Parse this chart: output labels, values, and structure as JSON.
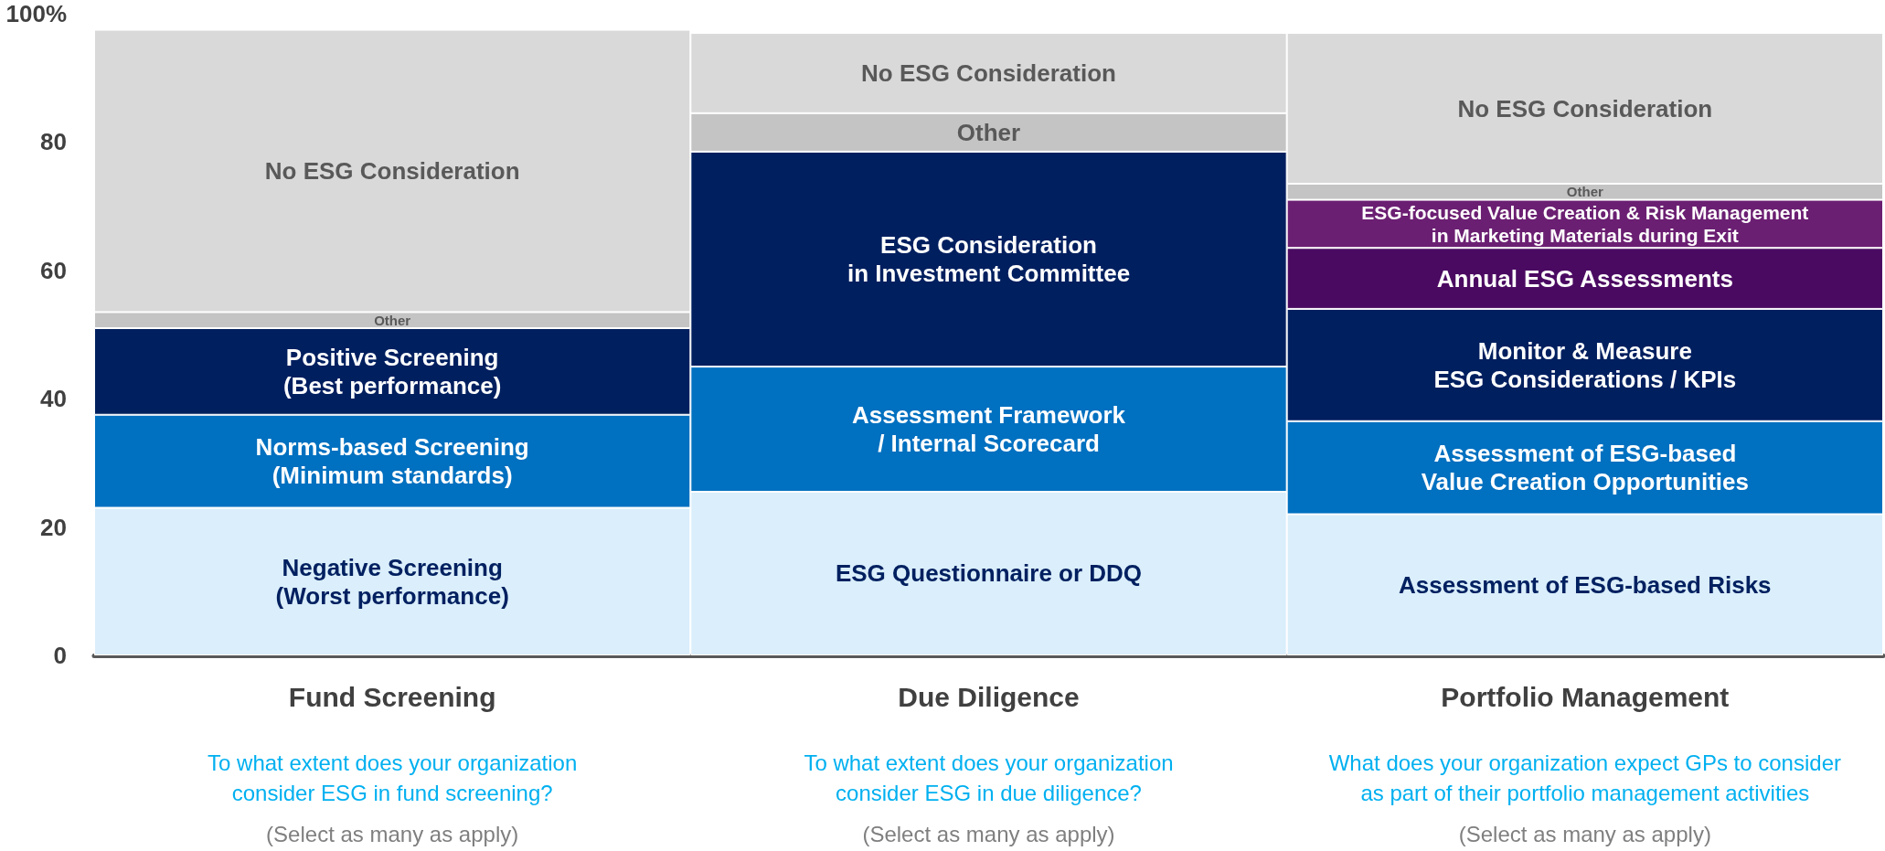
{
  "chart_data": {
    "type": "bar",
    "stacked": true,
    "legend": false,
    "grid": false,
    "categories": [
      "Fund Screening",
      "Due Diligence",
      "Portfolio Management"
    ],
    "ylim": [
      0,
      100
    ],
    "yticks": [
      0,
      20,
      40,
      60,
      80,
      {
        "value": 100,
        "label": "100%"
      }
    ],
    "series": [
      {
        "name": "Negative Screening\n(Worst performance)",
        "color": "#daeefb",
        "values": [
          23,
          null,
          null
        ]
      },
      {
        "name": "Norms-based Screening\n(Minimum standards)",
        "color": "#0070c0",
        "values": [
          14.5,
          null,
          null
        ]
      },
      {
        "name": "Positive Screening\n(Best performance)",
        "color": "#001f5f",
        "values": [
          13.5,
          null,
          null
        ]
      },
      {
        "name": "ESG Questionnaire or DDQ",
        "color": "#daeefb",
        "values": [
          null,
          25.5,
          null
        ]
      },
      {
        "name": "Assessment Framework\n/ Internal Scorecard",
        "color": "#0070c0",
        "values": [
          null,
          19.5,
          null
        ]
      },
      {
        "name": "ESG Consideration\nin Investment Committee",
        "color": "#001f5f",
        "values": [
          null,
          33.5,
          null
        ]
      },
      {
        "name": "Assessment of ESG-based Risks",
        "color": "#daeefb",
        "values": [
          null,
          null,
          22
        ]
      },
      {
        "name": "Assessment of ESG-based\nValue Creation Opportunities",
        "color": "#0070c0",
        "values": [
          null,
          null,
          14.5
        ]
      },
      {
        "name": "Monitor & Measure\nESG Considerations / KPIs",
        "color": "#001f5f",
        "values": [
          null,
          null,
          17.5
        ]
      },
      {
        "name": "Annual ESG Assessments",
        "color": "#4b0a62",
        "values": [
          null,
          null,
          9.5
        ]
      },
      {
        "name": "ESG-focused Value Creation & Risk Management\nin Marketing Materials during Exit",
        "color": "#6b1f72",
        "values": [
          null,
          null,
          7.5
        ]
      },
      {
        "name": "Other",
        "color": "#c4c4c4",
        "values": [
          2.5,
          6,
          2.5
        ]
      },
      {
        "name": "No ESG Consideration",
        "color": "#d9d9d9",
        "values": [
          44,
          12.5,
          23.5
        ]
      }
    ],
    "annotations": [
      "To what extent does your organization\nconsider ESG in fund screening?",
      "To what extent does your organization\nconsider ESG in due diligence?",
      "What does your organization expect GPs to consider\nas part of their portfolio management activities",
      "(Select as many as apply)",
      "(Select as many as apply)",
      "(Select as many as apply)"
    ]
  }
}
